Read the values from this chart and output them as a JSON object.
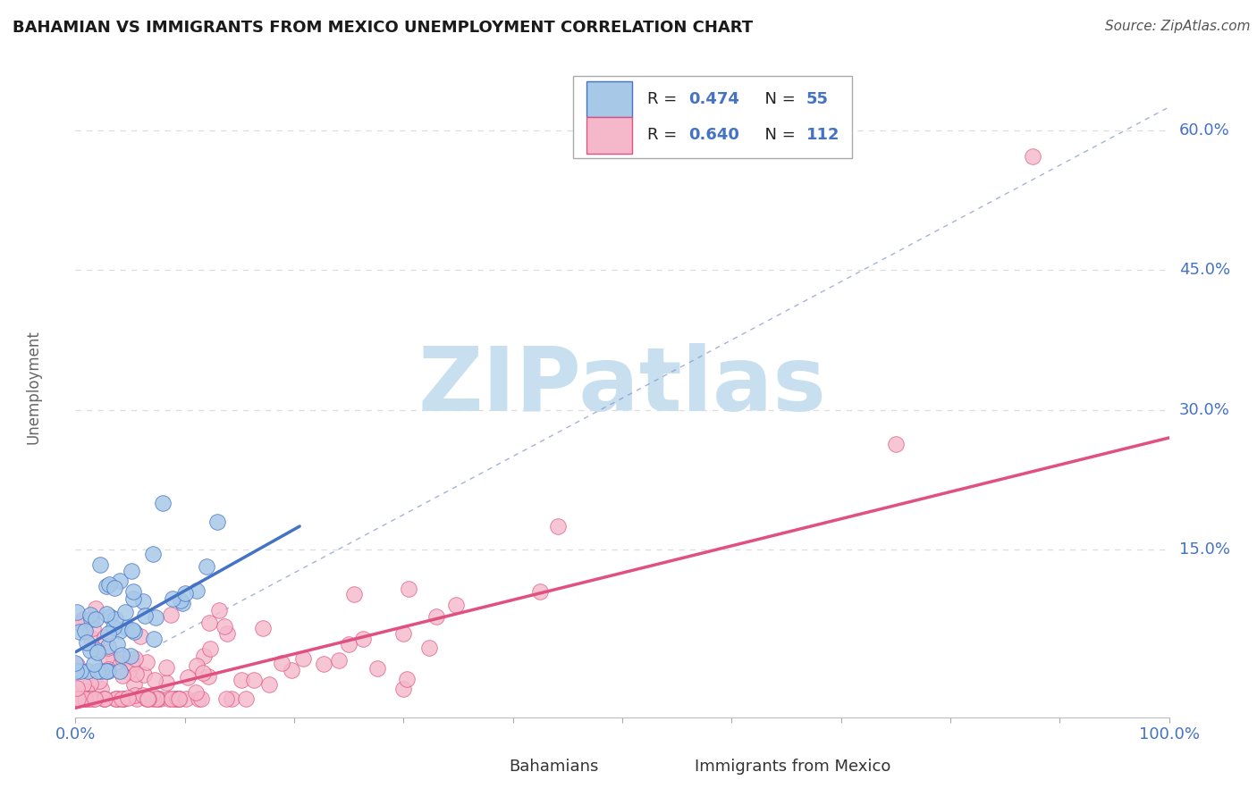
{
  "title": "BAHAMIAN VS IMMIGRANTS FROM MEXICO UNEMPLOYMENT CORRELATION CHART",
  "source": "Source: ZipAtlas.com",
  "ylabel": "Unemployment",
  "xlim": [
    0.0,
    1.0
  ],
  "ylim": [
    -0.03,
    0.68
  ],
  "bahamian_color": "#a8c8e8",
  "mexico_color": "#f5b8cb",
  "bahamian_line_color": "#4472c4",
  "mexico_line_color": "#e05080",
  "ref_line_color": "#8899cc",
  "bahamian_R": 0.474,
  "bahamian_N": 55,
  "mexico_R": 0.64,
  "mexico_N": 112,
  "watermark_text": "ZIPatlas",
  "watermark_color": "#c8dff0",
  "background_color": "#ffffff",
  "title_fontsize": 13,
  "axis_label_color": "#4472c4",
  "legend_text_color": "#222222",
  "legend_value_color": "#4472c4",
  "gridline_color": "#dddddd",
  "ytick_values": [
    0.15,
    0.3,
    0.45,
    0.6
  ],
  "ytick_labels": [
    "15.0%",
    "30.0%",
    "45.0%",
    "60.0%"
  ],
  "bah_trend_x0": 0.0,
  "bah_trend_y0": 0.04,
  "bah_trend_x1": 0.205,
  "bah_trend_y1": 0.175,
  "mex_trend_x0": 0.0,
  "mex_trend_y0": -0.02,
  "mex_trend_x1": 1.0,
  "mex_trend_y1": 0.27,
  "ref_line_x0": 0.0,
  "ref_line_y0": 0.0,
  "ref_line_x1": 1.0,
  "ref_line_y1": 0.625
}
